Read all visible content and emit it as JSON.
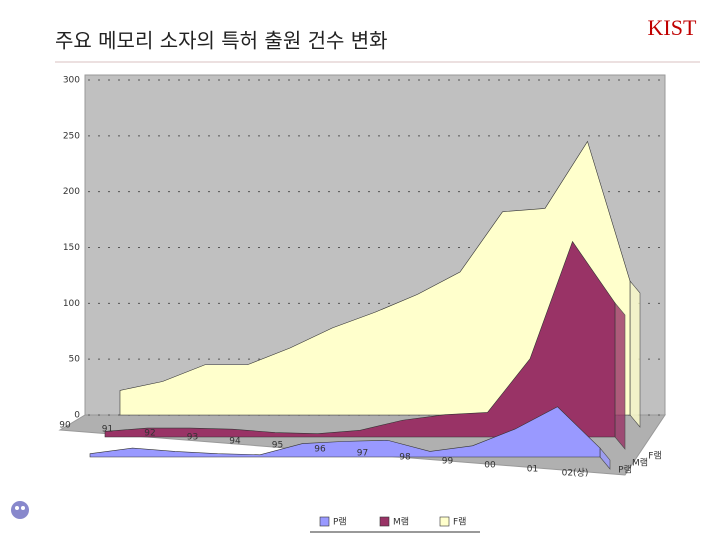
{
  "header": {
    "title": "주요 메모리 소자의 특허 출원 건수 변화",
    "logo": "KIST"
  },
  "chart_data": {
    "type": "area3d",
    "categories": [
      "90",
      "91",
      "92",
      "93",
      "94",
      "95",
      "96",
      "97",
      "98",
      "99",
      "00",
      "01",
      "02(상)"
    ],
    "series": [
      {
        "name": "P램",
        "color": "#9999ff",
        "values": [
          3,
          8,
          5,
          3,
          2,
          12,
          14,
          15,
          5,
          10,
          25,
          45,
          8
        ]
      },
      {
        "name": "M램",
        "color": "#993366",
        "values": [
          5,
          8,
          8,
          7,
          4,
          3,
          6,
          15,
          20,
          22,
          70,
          175,
          120
        ]
      },
      {
        "name": "F램",
        "color": "#ffffcc",
        "values": [
          22,
          30,
          45,
          45,
          60,
          78,
          92,
          108,
          128,
          182,
          185,
          245,
          120
        ]
      }
    ],
    "ylim": [
      0,
      300
    ],
    "yticks": [
      0,
      50,
      100,
      150,
      200,
      250,
      300
    ],
    "grid": true
  }
}
